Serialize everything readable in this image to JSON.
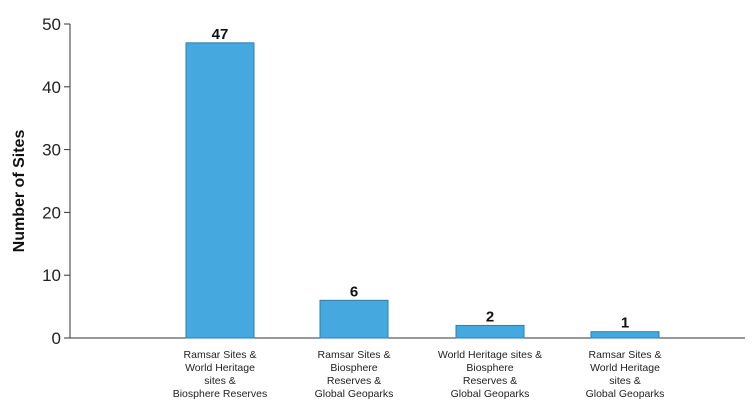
{
  "chart_data": {
    "type": "bar",
    "categories": [
      [
        "Ramsar Sites &",
        "World Heritage",
        "sites &",
        "Biosphere Reserves"
      ],
      [
        "Ramsar Sites &",
        "Biosphere",
        "Reserves &",
        "Global Geoparks"
      ],
      [
        "World Heritage sites &",
        "Biosphere",
        "Reserves &",
        "Global Geoparks"
      ],
      [
        "Ramsar Sites &",
        "World Heritage",
        "sites &",
        "Global Geoparks"
      ]
    ],
    "values": [
      47,
      6,
      2,
      1
    ],
    "data_labels": [
      "47",
      "6",
      "2",
      "1"
    ],
    "title": "",
    "xlabel": "",
    "ylabel": "Number of Sites",
    "ylim": [
      0,
      50
    ],
    "yticks": [
      "0",
      "10",
      "20",
      "30",
      "40",
      "50"
    ],
    "grid": false,
    "bar_color": "#45a8de",
    "bar_border_color": "#2a7fb3"
  }
}
